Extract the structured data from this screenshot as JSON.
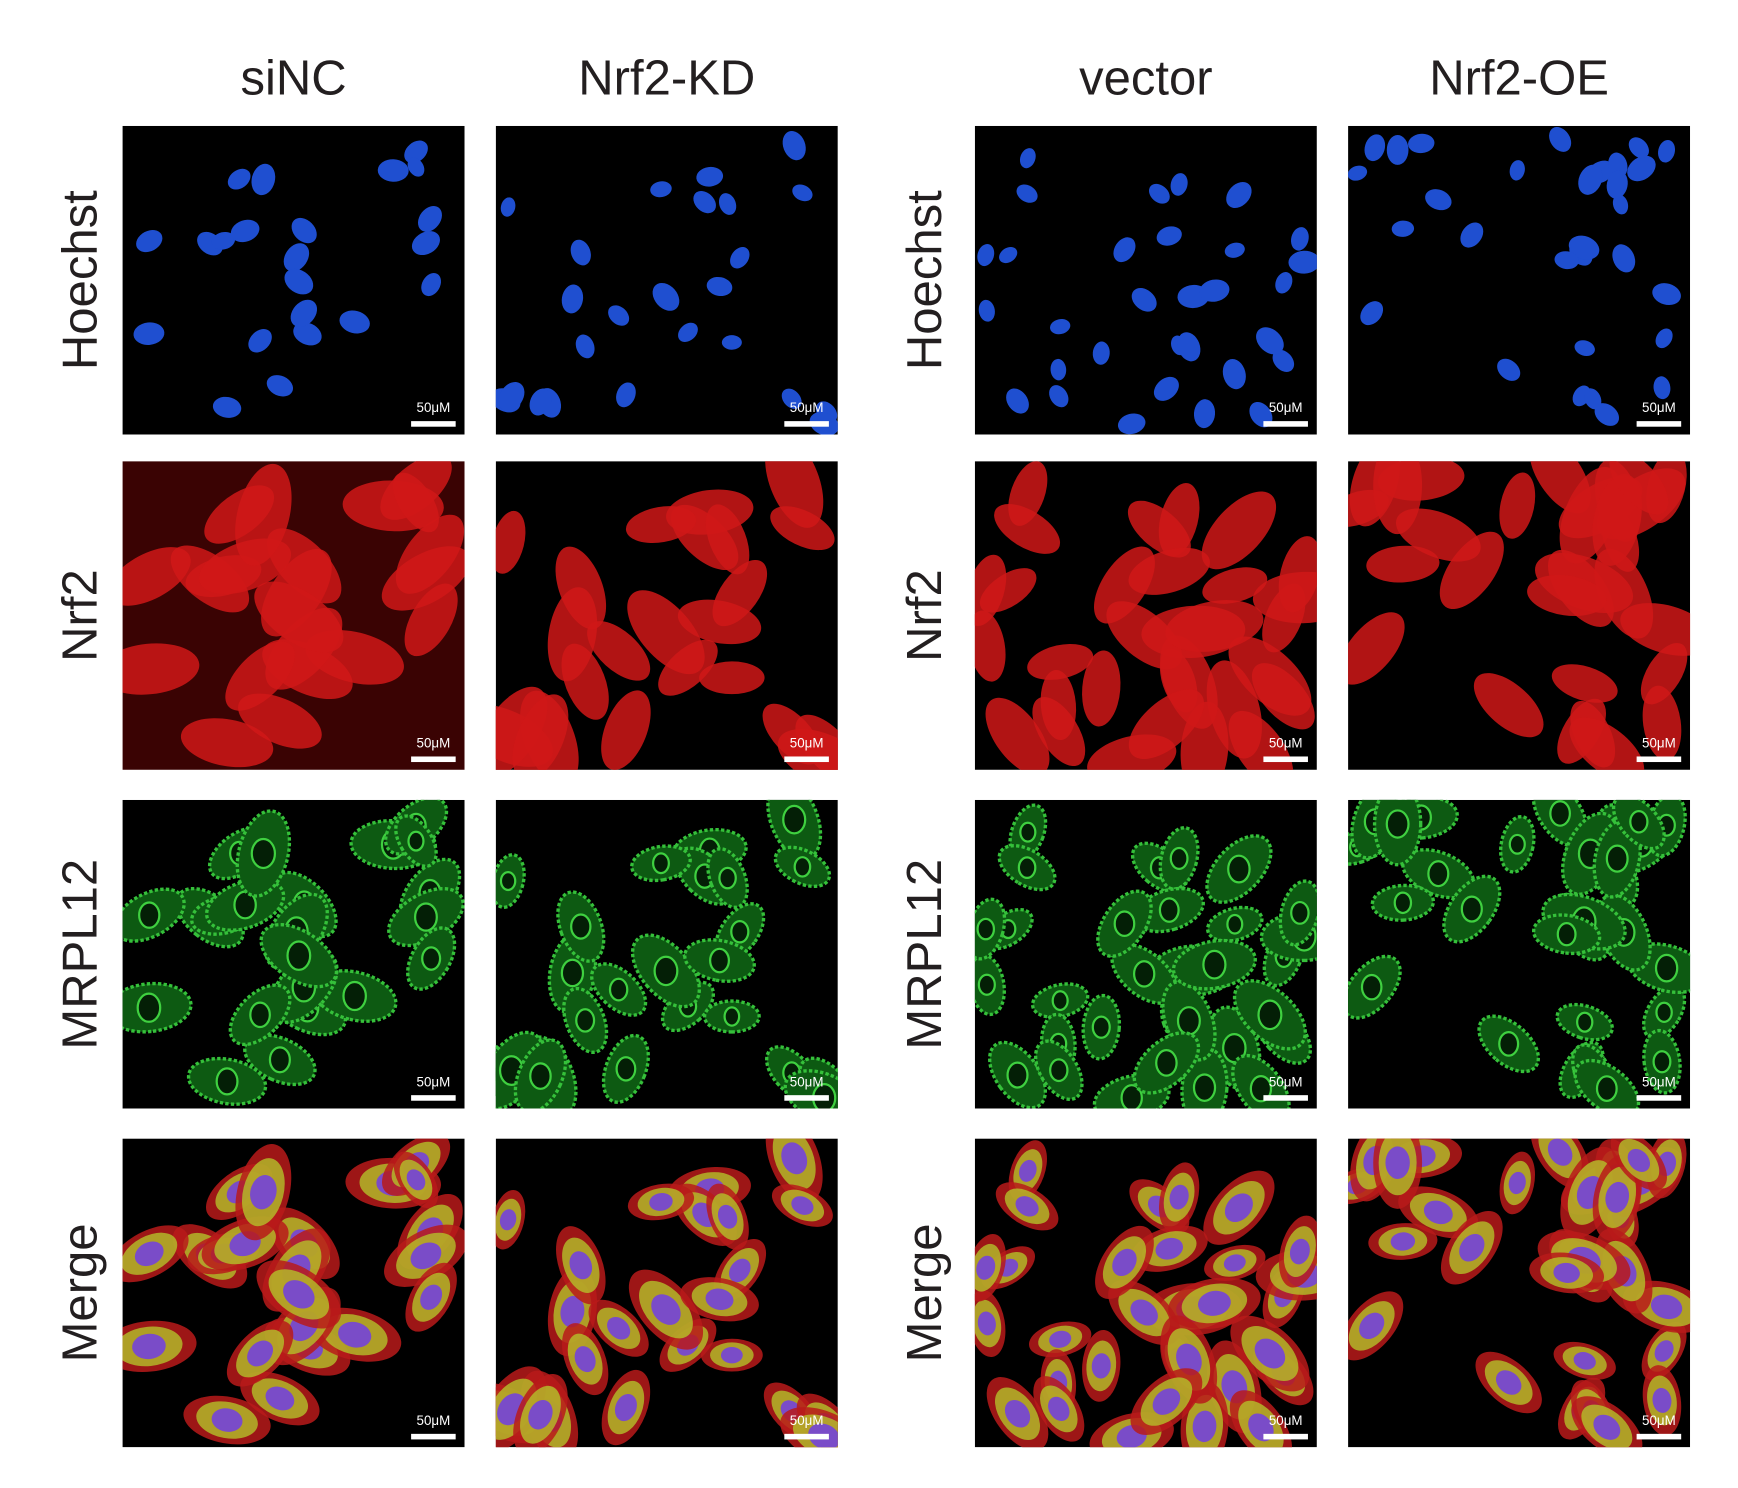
{
  "groups": [
    {
      "columns": [
        "siNC",
        "Nrf2-KD"
      ],
      "rows": [
        "Hoechst",
        "Nrf2",
        "MRPL12",
        "Merge"
      ]
    },
    {
      "columns": [
        "vector",
        "Nrf2-OE"
      ],
      "rows": [
        "Hoechst",
        "Nrf2",
        "MRPL12",
        "Merge"
      ]
    }
  ],
  "scale_bar": "50μM"
}
